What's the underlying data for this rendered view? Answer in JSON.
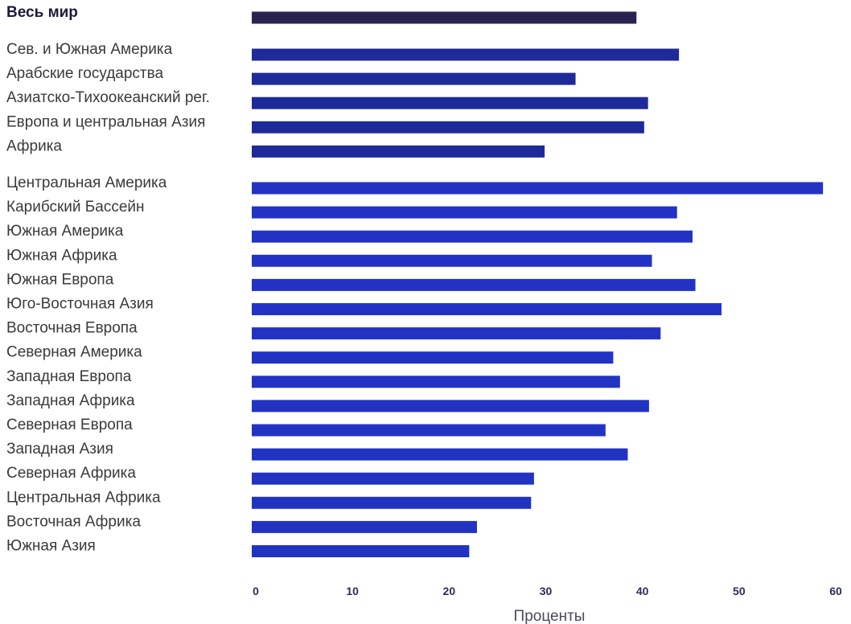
{
  "chart_data": {
    "type": "bar",
    "orientation": "horizontal",
    "xlabel": "Проценты",
    "xlim": [
      0,
      60
    ],
    "xticks": [
      0,
      10,
      20,
      30,
      40,
      50,
      60
    ],
    "grid": false,
    "groups": [
      {
        "color": "#2a2352",
        "bold": true,
        "categories": [
          "Весь мир"
        ],
        "values": [
          39.8
        ]
      },
      {
        "color": "#1f2a9a",
        "bold": false,
        "categories": [
          "Сев. и Южная Америка",
          "Арабские государства",
          "Азиатско-Тихоокеанский рег.",
          "Европа и центральная Азия",
          "Африка"
        ],
        "values": [
          44.2,
          33.5,
          41.0,
          40.6,
          30.3
        ]
      },
      {
        "color": "#2233c4",
        "bold": false,
        "categories": [
          "Центральная Америка",
          "Карибский Бассейн",
          "Южная Америка",
          "Южная Африка",
          "Южная Европа",
          "Юго-Восточная Азия",
          "Восточная Европа",
          "Северная Америка",
          "Западная Европа",
          "Западная Африка",
          "Северная Европа",
          "Западная Азия",
          "Северная Африка",
          "Центральная Африка",
          "Восточная Африка",
          "Южная Азия"
        ],
        "values": [
          59.1,
          44.0,
          45.6,
          41.4,
          45.9,
          48.6,
          42.3,
          37.4,
          38.1,
          41.1,
          36.6,
          38.9,
          29.2,
          28.9,
          23.3,
          22.5
        ]
      }
    ]
  }
}
